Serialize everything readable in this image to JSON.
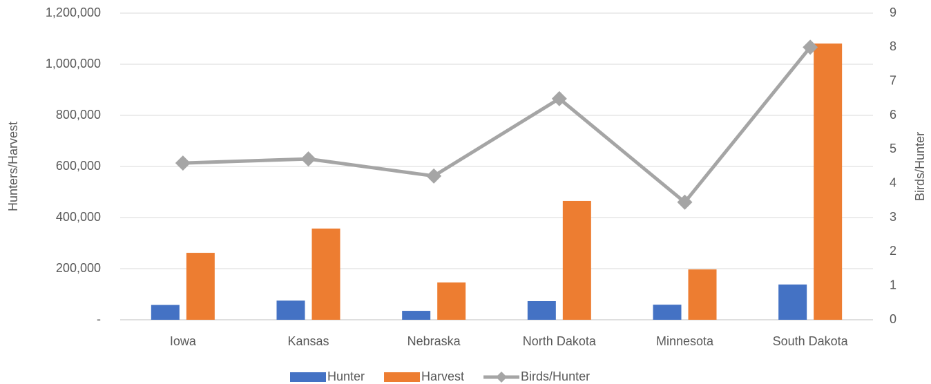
{
  "chart_data": {
    "type": "bar",
    "y_label": "Hunters/Harvest",
    "y2_label": "Birds/Hunter",
    "categories": [
      "Iowa",
      "Kansas",
      "Nebraska",
      "North Dakota",
      "Minnesota",
      "South Dakota"
    ],
    "series": [
      {
        "name": "Hunter",
        "type": "bar",
        "color": "#4472c4",
        "values": [
          58000,
          75000,
          35000,
          73000,
          59000,
          138000
        ]
      },
      {
        "name": "Harvest",
        "type": "bar",
        "color": "#ed7d31",
        "values": [
          262000,
          357000,
          146000,
          465000,
          197000,
          1081000
        ]
      },
      {
        "name": "Birds/Hunter",
        "type": "line",
        "axis": "y2",
        "color": "#a5a5a5",
        "values": [
          4.6,
          4.72,
          4.22,
          6.49,
          3.45,
          8.0
        ]
      }
    ],
    "ylim": [
      0,
      1200000
    ],
    "yticks": [
      {
        "value": 0,
        "label": "-"
      },
      {
        "value": 200000,
        "label": "200,000"
      },
      {
        "value": 400000,
        "label": "400,000"
      },
      {
        "value": 600000,
        "label": "600,000"
      },
      {
        "value": 800000,
        "label": "800,000"
      },
      {
        "value": 1000000,
        "label": "1,000,000"
      },
      {
        "value": 1200000,
        "label": "1,200,000"
      }
    ],
    "y2lim": [
      0,
      9
    ],
    "y2ticks": [
      0,
      1,
      2,
      3,
      4,
      5,
      6,
      7,
      8,
      9
    ],
    "grid": true,
    "legend": "bottom"
  }
}
